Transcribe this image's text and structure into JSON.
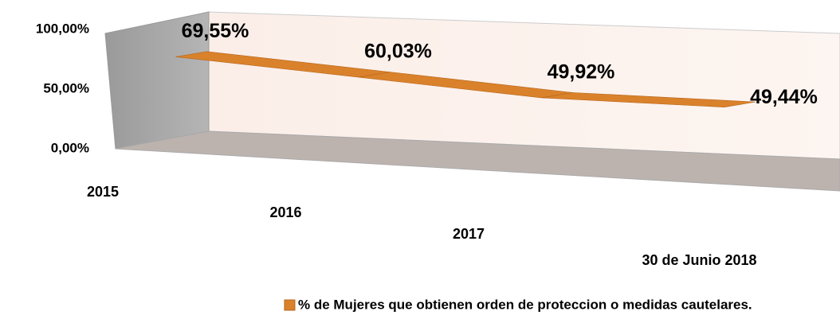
{
  "chart_data": {
    "type": "line3d",
    "categories": [
      "2015",
      "2016",
      "2017",
      "30 de Junio 2018"
    ],
    "series": [
      {
        "name": "% de Mujeres que  obtienen orden de proteccion o medidas cautelares.",
        "color": "#d9822b",
        "values": [
          69.55,
          60.03,
          49.92,
          49.44
        ],
        "value_labels": [
          "69,55%",
          "60,03%",
          "49,92%",
          "49,44%"
        ]
      }
    ],
    "ylim": [
      0,
      100
    ],
    "yticks": [
      {
        "value": 0,
        "label": "0,00%"
      },
      {
        "value": 50,
        "label": "50,00%"
      },
      {
        "value": 100,
        "label": "100,00%"
      }
    ],
    "legend": "bottom"
  }
}
